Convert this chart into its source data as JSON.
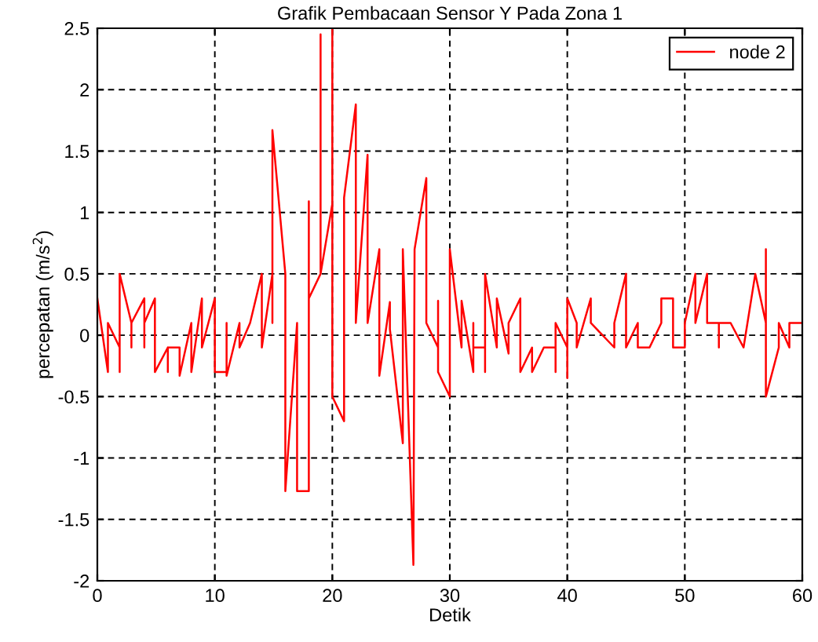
{
  "chart_data": {
    "type": "line",
    "title": "Grafik Pembacaan Sensor Y Pada Zona 1",
    "xlabel": "Detik",
    "ylabel": "percepatan (m/s$^{2}$)",
    "xlim": [
      0,
      60
    ],
    "ylim": [
      -2,
      2.5
    ],
    "xticks": [
      0,
      10,
      20,
      30,
      40,
      50,
      60
    ],
    "yticks": [
      -2,
      -1.5,
      -1,
      -0.5,
      0,
      0.5,
      1,
      1.5,
      2,
      2.5
    ],
    "grid": true,
    "legend": "top right",
    "marker": "none",
    "line_style": "solid",
    "series": [
      {
        "name": "node 2",
        "color": "#ff0000",
        "x": [
          0,
          0.9,
          0.9,
          1.9,
          1.9,
          1.9,
          2.9,
          2.9,
          2.9,
          4,
          4,
          4,
          4.9,
          4.9,
          6,
          6,
          6,
          7,
          7,
          8,
          8,
          8.9,
          8.9,
          10,
          10,
          11,
          11,
          11,
          12.1,
          12.1,
          13,
          14,
          14,
          14.9,
          14.9,
          14.9,
          16,
          16,
          17,
          17,
          18,
          18,
          18,
          19,
          19,
          19,
          20,
          20,
          20,
          21,
          21,
          22,
          22,
          23,
          23,
          24,
          24,
          24.9,
          24.9,
          26,
          26,
          26.9,
          27,
          28,
          28,
          29,
          29,
          29,
          30,
          30,
          31,
          31,
          32,
          32,
          32,
          33,
          33,
          33,
          34,
          34,
          35,
          35,
          36,
          36,
          37,
          37,
          38,
          39,
          39,
          39,
          40,
          40,
          40,
          40.8,
          40.8,
          42,
          42,
          44,
          44,
          45,
          45,
          46,
          46,
          47,
          48,
          48,
          49,
          49,
          50,
          50,
          50.9,
          50.9,
          51.9,
          51.9,
          52.9,
          52.9,
          52.9,
          53.9,
          55,
          56,
          56.9,
          56.9,
          56.9,
          58,
          58,
          58.9,
          58.9,
          60
        ],
        "values": [
          0.3,
          -0.3,
          0.1,
          -0.1,
          -0.3,
          0.5,
          0.1,
          -0.1,
          0.1,
          0.3,
          -0.1,
          0.1,
          0.3,
          -0.3,
          -0.1,
          -0.3,
          -0.1,
          -0.1,
          -0.33,
          0.1,
          -0.3,
          0.3,
          -0.1,
          0.3,
          -0.3,
          -0.3,
          0.1,
          -0.33,
          0.1,
          -0.1,
          0.1,
          0.5,
          -0.1,
          0.5,
          0.1,
          1.67,
          0.5,
          -1.27,
          0.1,
          -1.27,
          -1.27,
          1.09,
          0.3,
          0.5,
          2.45,
          0.5,
          1.07,
          2.5,
          -0.5,
          -0.7,
          1.12,
          1.88,
          0.1,
          1.47,
          0.1,
          0.7,
          -0.33,
          0.27,
          0.05,
          -0.88,
          0.7,
          -1.87,
          0.7,
          1.28,
          0.1,
          -0.1,
          0.28,
          -0.3,
          -0.5,
          0.7,
          -0.1,
          0.28,
          -0.3,
          0.1,
          -0.1,
          -0.1,
          -0.3,
          0.5,
          -0.1,
          0.3,
          -0.15,
          0.1,
          0.3,
          -0.3,
          -0.1,
          -0.3,
          -0.1,
          -0.1,
          -0.3,
          0.1,
          -0.1,
          -0.35,
          0.3,
          0.1,
          -0.1,
          0.3,
          0.1,
          -0.1,
          0.1,
          0.5,
          -0.1,
          0.1,
          -0.1,
          -0.1,
          0.1,
          0.3,
          0.3,
          -0.1,
          -0.1,
          0.1,
          0.5,
          0.1,
          0.5,
          0.1,
          0.1,
          -0.1,
          0.1,
          0.1,
          -0.1,
          0.5,
          0.1,
          0.7,
          -0.5,
          -0.1,
          0.1,
          -0.1,
          0.1,
          0.1
        ]
      }
    ]
  }
}
